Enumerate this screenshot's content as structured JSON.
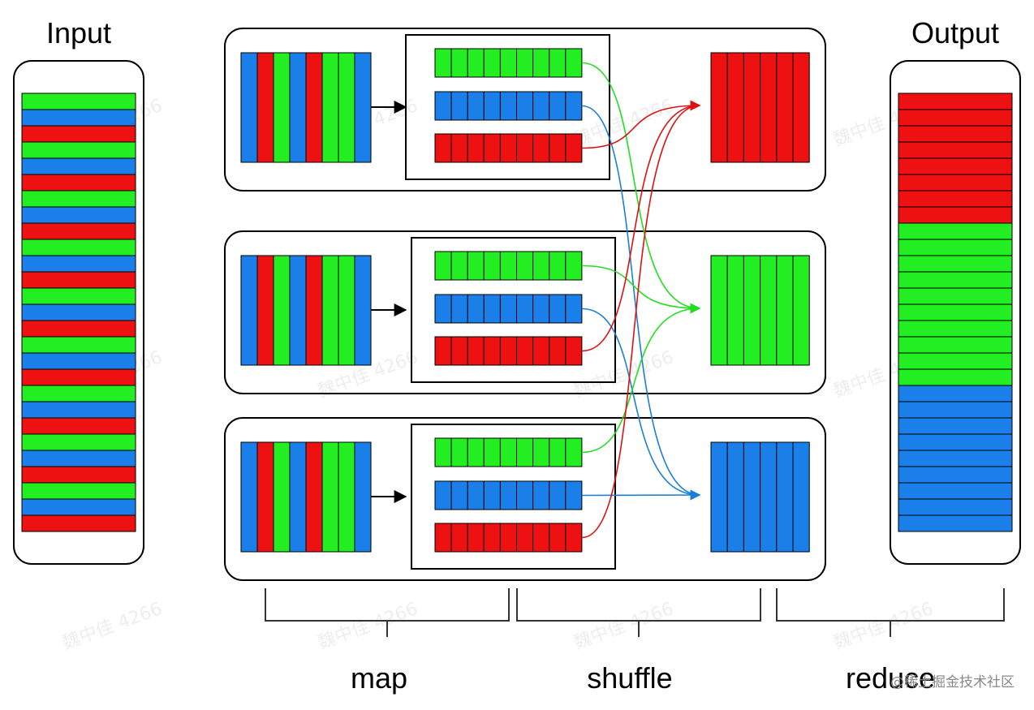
{
  "labels": {
    "input": "Input",
    "output": "Output",
    "map": "map",
    "shuffle": "shuffle",
    "reduce": "reduce"
  },
  "watermark": "魏中佳 4266",
  "footer_watermark": "@稀土掘金技术社区"
}
